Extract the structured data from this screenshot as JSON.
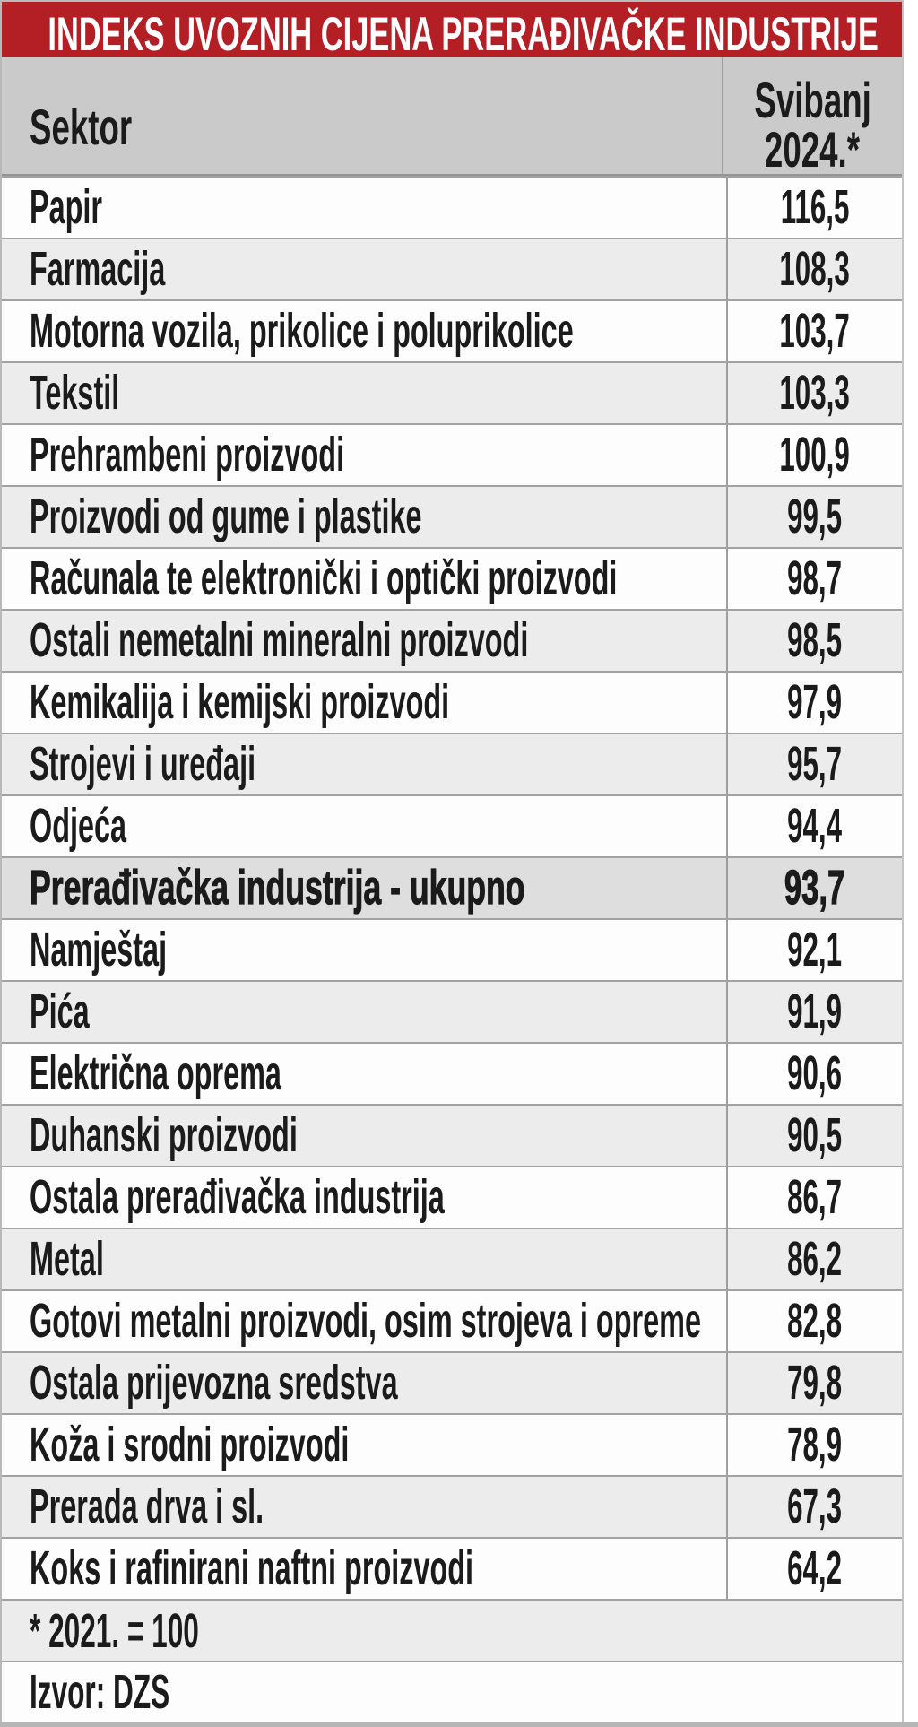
{
  "title": "INDEKS UVOZNIH CIJENA PRERAĐIVAČKE INDUSTRIJE",
  "header": {
    "sector": "Sektor",
    "value_line1": "Svibanj",
    "value_line2": "2024.*"
  },
  "rows": [
    {
      "label": "Papir",
      "value": "116,5"
    },
    {
      "label": "Farmacija",
      "value": "108,3"
    },
    {
      "label": "Motorna vozila, prikolice i poluprikolice",
      "value": "103,7"
    },
    {
      "label": "Tekstil",
      "value": "103,3"
    },
    {
      "label": "Prehrambeni proizvodi",
      "value": "100,9"
    },
    {
      "label": "Proizvodi od gume i plastike",
      "value": "99,5"
    },
    {
      "label": "Računala te elektronički i optički proizvodi",
      "value": "98,7"
    },
    {
      "label": "Ostali nemetalni mineralni proizvodi",
      "value": "98,5"
    },
    {
      "label": "Kemikalija i kemijski proizvodi",
      "value": "97,9"
    },
    {
      "label": "Strojevi i uređaji",
      "value": "95,7"
    },
    {
      "label": "Odjeća",
      "value": "94,4"
    },
    {
      "label": "Prerađivačka industrija - ukupno",
      "value": "93,7",
      "highlight": true
    },
    {
      "label": "Namještaj",
      "value": "92,1"
    },
    {
      "label": "Pića",
      "value": "91,9"
    },
    {
      "label": "Električna oprema",
      "value": "90,6"
    },
    {
      "label": "Duhanski proizvodi",
      "value": "90,5"
    },
    {
      "label": "Ostala prerađivačka industrija",
      "value": "86,7"
    },
    {
      "label": "Metal",
      "value": "86,2"
    },
    {
      "label": "Gotovi metalni proizvodi, osim strojeva i opreme",
      "value": "82,8"
    },
    {
      "label": "Ostala prijevozna sredstva",
      "value": "79,8"
    },
    {
      "label": "Koža i srodni proizvodi",
      "value": "78,9"
    },
    {
      "label": "Prerada drva i sl.",
      "value": "67,3"
    },
    {
      "label": "Koks i rafinirani naftni proizvodi",
      "value": "64,2"
    }
  ],
  "footnote": "* 2021. = 100",
  "source": "Izvor: DZS",
  "colors": {
    "banner_bg": "#b41f25",
    "banner_text": "#ffffff",
    "header_bg": "#cacaca",
    "row_alt_bg": "#ececec",
    "row_bg": "#fdfdfd",
    "highlight_row_bg": "#dedede",
    "border": "#a2a2a2",
    "text": "#1b1b1b"
  },
  "chart_data": {
    "type": "table",
    "title": "INDEKS UVOZNIH CIJENA PRERAĐIVAČKE INDUSTRIJE",
    "columns": [
      "Sektor",
      "Svibanj 2024.*"
    ],
    "rows": [
      [
        "Papir",
        116.5
      ],
      [
        "Farmacija",
        108.3
      ],
      [
        "Motorna vozila, prikolice i poluprikolice",
        103.7
      ],
      [
        "Tekstil",
        103.3
      ],
      [
        "Prehrambeni proizvodi",
        100.9
      ],
      [
        "Proizvodi od gume i plastike",
        99.5
      ],
      [
        "Računala te elektronički i optički proizvodi",
        98.7
      ],
      [
        "Ostali nemetalni mineralni proizvodi",
        98.5
      ],
      [
        "Kemikalija i kemijski proizvodi",
        97.9
      ],
      [
        "Strojevi i uređaji",
        95.7
      ],
      [
        "Odjeća",
        94.4
      ],
      [
        "Prerađivačka industrija - ukupno",
        93.7
      ],
      [
        "Namještaj",
        92.1
      ],
      [
        "Pića",
        91.9
      ],
      [
        "Električna oprema",
        90.6
      ],
      [
        "Duhanski proizvodi",
        90.5
      ],
      [
        "Ostala prerađivačka industrija",
        86.7
      ],
      [
        "Metal",
        86.2
      ],
      [
        "Gotovi metalni proizvodi, osim strojeva i opreme",
        82.8
      ],
      [
        "Ostala prijevozna sredstva",
        79.8
      ],
      [
        "Koža i srodni proizvodi",
        78.9
      ],
      [
        "Prerada drva i sl.",
        67.3
      ],
      [
        "Koks i rafinirani naftni proizvodi",
        64.2
      ]
    ],
    "highlighted_row": "Prerađivačka industrija - ukupno",
    "footnote": "* 2021. = 100",
    "source": "Izvor: DZS"
  }
}
